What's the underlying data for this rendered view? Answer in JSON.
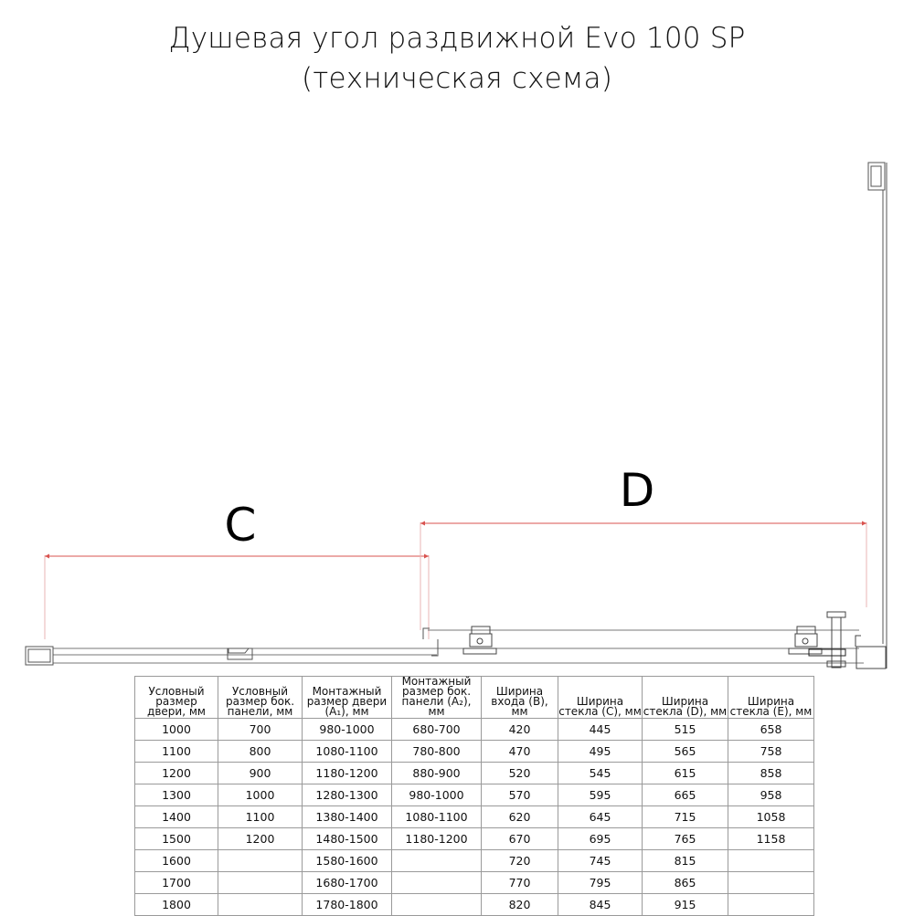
{
  "title": {
    "line1": "Душевая угол раздвижной Evo 100 SP",
    "line2": "(техническая схема)"
  },
  "diagram": {
    "dimension_labels": {
      "c": "C",
      "d": "D"
    },
    "dimension_line_color": "#d9534f",
    "profile_color": "#555555"
  },
  "table": {
    "headers": [
      "Условный размер двери, мм",
      "Условный размер бок. панели, мм",
      "Монтажный размер двери (A₁), мм",
      "Монтажный размер бок. панели (A₂), мм",
      "Ширина входа (B), мм",
      "Ширина стекла (C), мм",
      "Ширина стекла (D), мм",
      "Ширина стекла (E), мм"
    ],
    "rows": [
      [
        "1000",
        "700",
        "980-1000",
        "680-700",
        "420",
        "445",
        "515",
        "658"
      ],
      [
        "1100",
        "800",
        "1080-1100",
        "780-800",
        "470",
        "495",
        "565",
        "758"
      ],
      [
        "1200",
        "900",
        "1180-1200",
        "880-900",
        "520",
        "545",
        "615",
        "858"
      ],
      [
        "1300",
        "1000",
        "1280-1300",
        "980-1000",
        "570",
        "595",
        "665",
        "958"
      ],
      [
        "1400",
        "1100",
        "1380-1400",
        "1080-1100",
        "620",
        "645",
        "715",
        "1058"
      ],
      [
        "1500",
        "1200",
        "1480-1500",
        "1180-1200",
        "670",
        "695",
        "765",
        "1158"
      ],
      [
        "1600",
        "",
        "1580-1600",
        "",
        "720",
        "745",
        "815",
        ""
      ],
      [
        "1700",
        "",
        "1680-1700",
        "",
        "770",
        "795",
        "865",
        ""
      ],
      [
        "1800",
        "",
        "1780-1800",
        "",
        "820",
        "845",
        "915",
        ""
      ]
    ]
  }
}
